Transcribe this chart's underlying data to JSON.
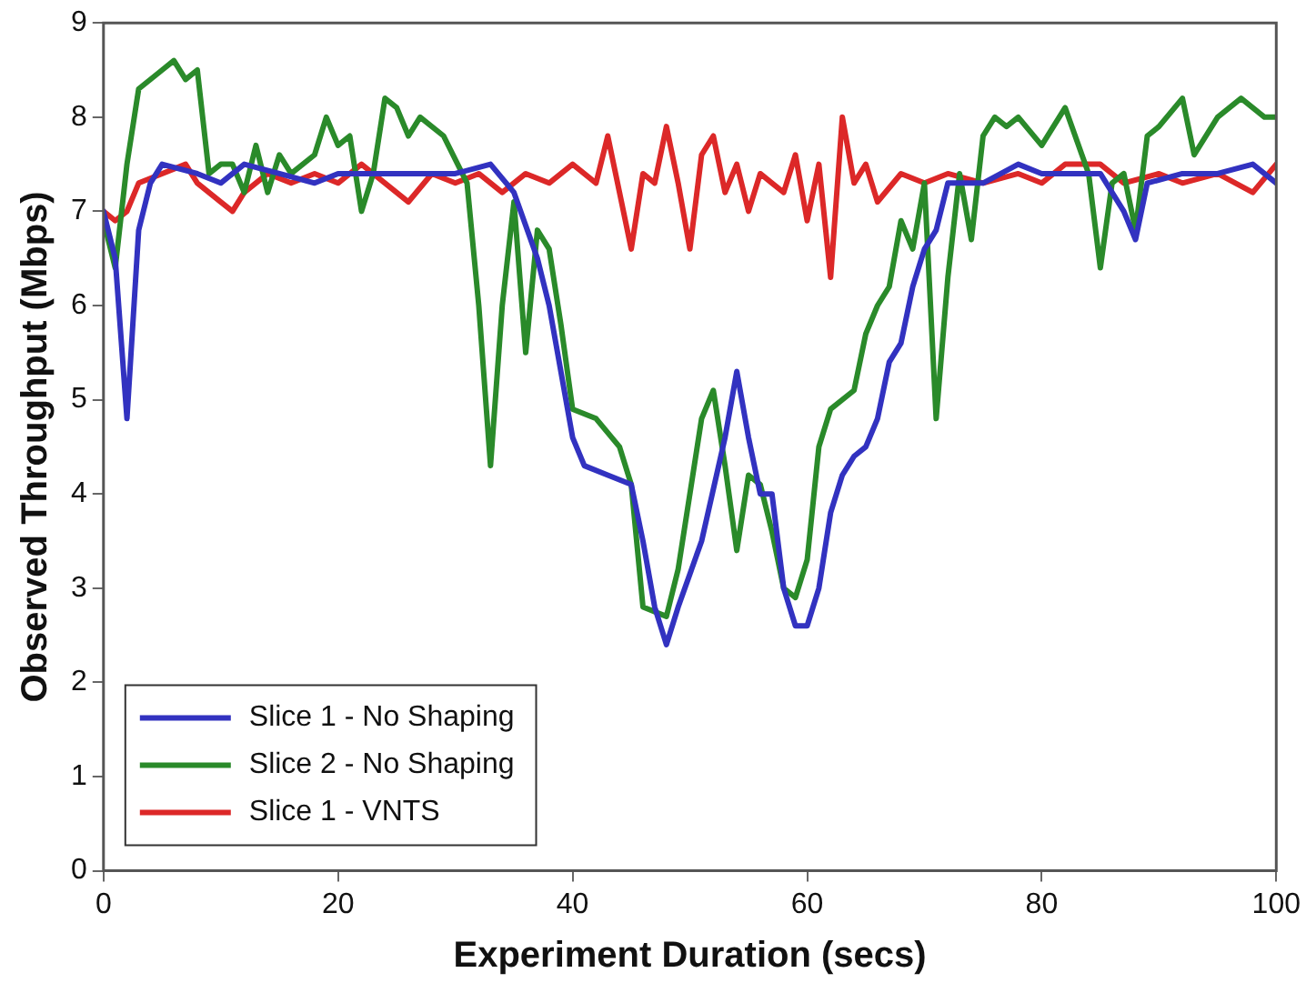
{
  "chart_data": {
    "type": "line",
    "xlabel": "Experiment Duration (secs)",
    "ylabel": "Observed Throughput (Mbps)",
    "xlim": [
      0,
      100
    ],
    "xticks": [
      0,
      20,
      40,
      60,
      80,
      100
    ],
    "ylim": [
      0,
      9
    ],
    "yticks": [
      0,
      1,
      2,
      3,
      4,
      5,
      6,
      7,
      8,
      9
    ],
    "grid": false,
    "legend": "bottom left",
    "marker": "none",
    "line_style": "solid",
    "series": [
      {
        "name": "Slice 1 - No Shaping",
        "color": "#3232c0",
        "x": [
          0,
          1,
          2,
          3,
          4,
          5,
          8,
          10,
          12,
          15,
          18,
          20,
          25,
          30,
          33,
          35,
          37,
          38,
          39,
          40,
          41,
          43,
          45,
          46,
          47,
          48,
          49,
          51,
          53,
          54,
          55,
          56,
          57,
          58,
          59,
          60,
          61,
          62,
          63,
          64,
          65,
          66,
          67,
          68,
          69,
          70,
          71,
          72,
          75,
          78,
          80,
          85,
          87,
          88,
          89,
          92,
          95,
          98,
          100
        ],
        "values": [
          7.0,
          6.5,
          4.8,
          6.8,
          7.3,
          7.5,
          7.4,
          7.3,
          7.5,
          7.4,
          7.3,
          7.4,
          7.4,
          7.4,
          7.5,
          7.2,
          6.5,
          6.0,
          5.3,
          4.6,
          4.3,
          4.2,
          4.1,
          3.5,
          2.8,
          2.4,
          2.8,
          3.5,
          4.6,
          5.3,
          4.6,
          4.0,
          4.0,
          3.0,
          2.6,
          2.6,
          3.0,
          3.8,
          4.2,
          4.4,
          4.5,
          4.8,
          5.4,
          5.6,
          6.2,
          6.6,
          6.8,
          7.3,
          7.3,
          7.5,
          7.4,
          7.4,
          7.0,
          6.7,
          7.3,
          7.4,
          7.4,
          7.5,
          7.3
        ]
      },
      {
        "name": "Slice 2 - No Shaping",
        "color": "#2a8a2a",
        "x": [
          0,
          1,
          2,
          3,
          5,
          6,
          7,
          8,
          9,
          10,
          11,
          12,
          13,
          14,
          15,
          16,
          18,
          19,
          20,
          21,
          22,
          23,
          24,
          25,
          26,
          27,
          29,
          31,
          32,
          33,
          34,
          35,
          36,
          37,
          38,
          39,
          40,
          42,
          44,
          45,
          46,
          48,
          49,
          51,
          52,
          53,
          54,
          55,
          56,
          57,
          58,
          59,
          60,
          61,
          62,
          64,
          65,
          66,
          67,
          68,
          69,
          70,
          71,
          72,
          73,
          74,
          75,
          76,
          77,
          78,
          80,
          82,
          84,
          85,
          86,
          87,
          88,
          89,
          90,
          92,
          93,
          95,
          97,
          99,
          100
        ],
        "values": [
          6.9,
          6.4,
          7.5,
          8.3,
          8.5,
          8.6,
          8.4,
          8.5,
          7.4,
          7.5,
          7.5,
          7.2,
          7.7,
          7.2,
          7.6,
          7.4,
          7.6,
          8.0,
          7.7,
          7.8,
          7.0,
          7.4,
          8.2,
          8.1,
          7.8,
          8.0,
          7.8,
          7.3,
          6.0,
          4.3,
          6.0,
          7.1,
          5.5,
          6.8,
          6.6,
          5.8,
          4.9,
          4.8,
          4.5,
          4.1,
          2.8,
          2.7,
          3.2,
          4.8,
          5.1,
          4.3,
          3.4,
          4.2,
          4.1,
          3.6,
          3.0,
          2.9,
          3.3,
          4.5,
          4.9,
          5.1,
          5.7,
          6.0,
          6.2,
          6.9,
          6.6,
          7.3,
          4.8,
          6.3,
          7.4,
          6.7,
          7.8,
          8.0,
          7.9,
          8.0,
          7.7,
          8.1,
          7.4,
          6.4,
          7.3,
          7.4,
          6.8,
          7.8,
          7.9,
          8.2,
          7.6,
          8.0,
          8.2,
          8.0,
          8.0
        ]
      },
      {
        "name": "Slice 1 - VNTS",
        "color": "#dc2828",
        "x": [
          0,
          1,
          2,
          3,
          5,
          7,
          8,
          10,
          11,
          12,
          14,
          16,
          18,
          20,
          22,
          24,
          26,
          28,
          30,
          32,
          34,
          36,
          38,
          40,
          42,
          43,
          44,
          45,
          46,
          47,
          48,
          49,
          50,
          51,
          52,
          53,
          54,
          55,
          56,
          57,
          58,
          59,
          60,
          61,
          62,
          63,
          64,
          65,
          66,
          68,
          70,
          72,
          75,
          78,
          80,
          82,
          85,
          87,
          90,
          92,
          95,
          98,
          100
        ],
        "values": [
          7.0,
          6.9,
          7.0,
          7.3,
          7.4,
          7.5,
          7.3,
          7.1,
          7.0,
          7.2,
          7.4,
          7.3,
          7.4,
          7.3,
          7.5,
          7.3,
          7.1,
          7.4,
          7.3,
          7.4,
          7.2,
          7.4,
          7.3,
          7.5,
          7.3,
          7.8,
          7.2,
          6.6,
          7.4,
          7.3,
          7.9,
          7.3,
          6.6,
          7.6,
          7.8,
          7.2,
          7.5,
          7.0,
          7.4,
          7.3,
          7.2,
          7.6,
          6.9,
          7.5,
          6.3,
          8.0,
          7.3,
          7.5,
          7.1,
          7.4,
          7.3,
          7.4,
          7.3,
          7.4,
          7.3,
          7.5,
          7.5,
          7.3,
          7.4,
          7.3,
          7.4,
          7.2,
          7.5
        ]
      }
    ]
  }
}
